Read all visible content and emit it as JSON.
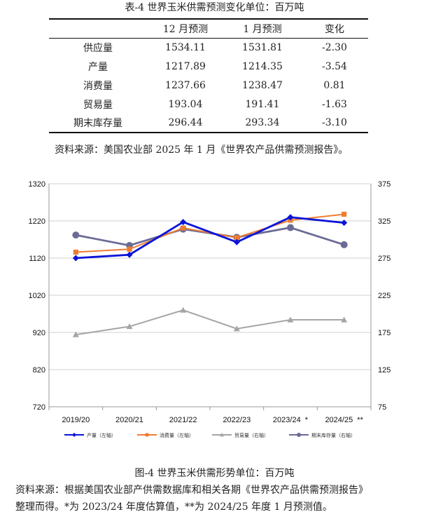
{
  "table": {
    "title": "表-4 世界玉米供需预测变化单位：百万吨",
    "headers": [
      "",
      "12 月预测",
      "1 月预测",
      "变化"
    ],
    "rows": [
      {
        "label": "供应量",
        "dec": "1534.11",
        "jan": "1531.81",
        "change": "-2.30"
      },
      {
        "label": "产量",
        "dec": "1217.89",
        "jan": "1214.35",
        "change": "-3.54"
      },
      {
        "label": "消费量",
        "dec": "1237.66",
        "jan": "1238.47",
        "change": "0.81"
      },
      {
        "label": "贸易量",
        "dec": "193.04",
        "jan": "191.41",
        "change": "-1.63"
      },
      {
        "label": "期末库存量",
        "dec": "296.44",
        "jan": "293.34",
        "change": "-3.10"
      }
    ],
    "source": "资料来源：美国农业部 2025 年 1 月《世界农产品供需预测报告》。"
  },
  "chart_data": {
    "type": "line",
    "categories": [
      "2019/20",
      "2020/21",
      "2021/22",
      "2022/23",
      "2023/24  *",
      "2024/25  **"
    ],
    "left_axis": {
      "ylim": [
        720,
        1320
      ],
      "ticks": [
        "720",
        "820",
        "920",
        "1020",
        "1120",
        "1220",
        "1320"
      ]
    },
    "right_axis": {
      "ylim": [
        75,
        375
      ],
      "ticks": [
        "75",
        "125",
        "175",
        "225",
        "275",
        "325",
        "375"
      ]
    },
    "grid": true,
    "legend_position": "bottom",
    "series": [
      {
        "name": "产量（左轴）",
        "axis": "left",
        "color": "#0a14d8",
        "marker": "diamond",
        "values": [
          1120,
          1129,
          1217,
          1163,
          1230,
          1215
        ]
      },
      {
        "name": "消费量（左轴）",
        "axis": "left",
        "color": "#ed7d31",
        "marker": "square",
        "values": [
          1136,
          1144,
          1201,
          1175,
          1222,
          1238
        ]
      },
      {
        "name": "贸易量（右轴）",
        "axis": "right",
        "color": "#a5a5a5",
        "marker": "triangle",
        "values": [
          172,
          183,
          205,
          180,
          192,
          192
        ]
      },
      {
        "name": "期末库存量（右轴）",
        "axis": "right",
        "color": "#6b6b96",
        "marker": "circle",
        "values": [
          306,
          292,
          314,
          303,
          316,
          293
        ]
      }
    ]
  },
  "figure": {
    "caption": "图-4 世界玉米供需形势单位：百万吨",
    "source_line1": "资料来源：根据美国农业部产供需数据库和相关各期《世界农产品供需预测报告》",
    "source_line2": "整理而得。*为 2023/24 年度估算值，**为 2024/25 年度 1 月预测值。"
  }
}
